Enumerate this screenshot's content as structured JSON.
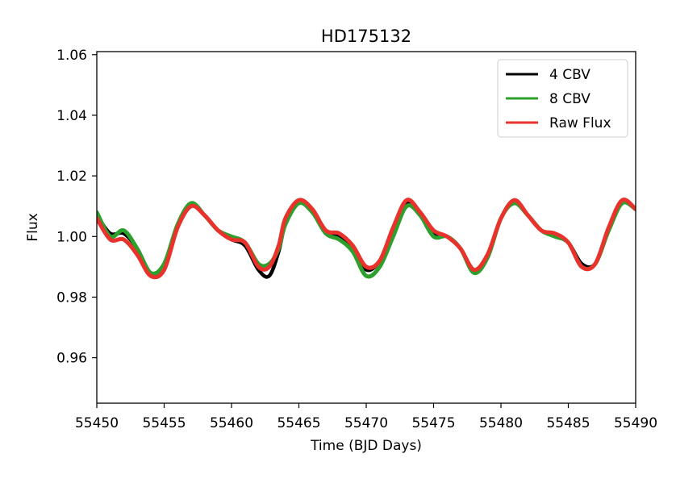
{
  "chart_data": {
    "type": "line",
    "title": "HD175132",
    "xlabel": "Time (BJD Days)",
    "ylabel": "Flux",
    "xlim": [
      55450,
      55490
    ],
    "ylim": [
      0.945,
      1.061
    ],
    "x_ticks": [
      55450,
      55455,
      55460,
      55465,
      55470,
      55475,
      55480,
      55485,
      55490
    ],
    "x_tick_labels": [
      "55450",
      "55455",
      "55460",
      "55465",
      "55470",
      "55475",
      "55480",
      "55485",
      "55490"
    ],
    "y_ticks": [
      0.96,
      0.98,
      1.0,
      1.02,
      1.04,
      1.06
    ],
    "y_tick_labels": [
      "0.96",
      "0.98",
      "1.00",
      "1.02",
      "1.04",
      "1.06"
    ],
    "grid": false,
    "legend_position": "top-right",
    "series": [
      {
        "name": "4 CBV",
        "color": "#000000",
        "x": [
          55450,
          55451,
          55452,
          55453,
          55454,
          55455,
          55456,
          55457,
          55458,
          55459,
          55460,
          55461,
          55462,
          55462.8,
          55463.5,
          55464,
          55465,
          55466,
          55467,
          55468,
          55469,
          55470,
          55471,
          55472,
          55473,
          55474,
          55475,
          55476,
          55477,
          55478,
          55479,
          55480,
          55481,
          55482,
          55483,
          55484,
          55485,
          55486,
          55487,
          55488,
          55489,
          55490
        ],
        "y": [
          1.007,
          1.001,
          1.001,
          0.996,
          0.988,
          0.99,
          1.003,
          1.01,
          1.007,
          1.002,
          0.999,
          0.997,
          0.989,
          0.987,
          0.995,
          1.004,
          1.011,
          1.008,
          1.002,
          1.0,
          0.996,
          0.989,
          0.992,
          1.002,
          1.011,
          1.008,
          1.001,
          1.0,
          0.996,
          0.989,
          0.993,
          1.006,
          1.011,
          1.007,
          1.002,
          1.0,
          0.998,
          0.991,
          0.991,
          1.002,
          1.011,
          1.009
        ]
      },
      {
        "name": "8 CBV",
        "color": "#2ca02c",
        "x": [
          55450,
          55451,
          55452,
          55453,
          55454,
          55455,
          55456,
          55457,
          55458,
          55459,
          55460,
          55461,
          55462,
          55462.8,
          55463.5,
          55464,
          55465,
          55466,
          55467,
          55468,
          55469,
          55470,
          55471,
          55472,
          55473,
          55474,
          55475,
          55476,
          55477,
          55478,
          55479,
          55480,
          55481,
          55482,
          55483,
          55484,
          55485,
          55486,
          55487,
          55488,
          55489,
          55490
        ],
        "y": [
          1.008,
          1.0,
          1.002,
          0.996,
          0.988,
          0.991,
          1.004,
          1.011,
          1.007,
          1.002,
          1.0,
          0.998,
          0.991,
          0.991,
          0.996,
          1.004,
          1.011,
          1.008,
          1.001,
          0.999,
          0.995,
          0.987,
          0.99,
          1.0,
          1.01,
          1.007,
          1.0,
          1.0,
          0.996,
          0.988,
          0.993,
          1.006,
          1.011,
          1.007,
          1.002,
          1.0,
          0.998,
          0.99,
          0.991,
          1.002,
          1.011,
          1.009
        ]
      },
      {
        "name": "Raw Flux",
        "color": "#e8322b",
        "x": [
          55450,
          55451,
          55452,
          55453,
          55454,
          55455,
          55456,
          55457,
          55458,
          55459,
          55460,
          55461,
          55462,
          55462.8,
          55463.5,
          55464,
          55465,
          55466,
          55467,
          55468,
          55469,
          55470,
          55471,
          55472,
          55473,
          55474,
          55475,
          55476,
          55477,
          55478,
          55479,
          55480,
          55481,
          55482,
          55483,
          55484,
          55485,
          55486,
          55487,
          55488,
          55489,
          55490
        ],
        "y": [
          1.006,
          0.999,
          0.999,
          0.994,
          0.987,
          0.989,
          1.003,
          1.01,
          1.007,
          1.002,
          0.999,
          0.998,
          0.99,
          0.99,
          0.997,
          1.006,
          1.012,
          1.009,
          1.002,
          1.001,
          0.997,
          0.99,
          0.992,
          1.003,
          1.012,
          1.008,
          1.002,
          1.0,
          0.996,
          0.989,
          0.994,
          1.006,
          1.012,
          1.007,
          1.002,
          1.001,
          0.998,
          0.99,
          0.991,
          1.003,
          1.012,
          1.009
        ]
      }
    ]
  }
}
